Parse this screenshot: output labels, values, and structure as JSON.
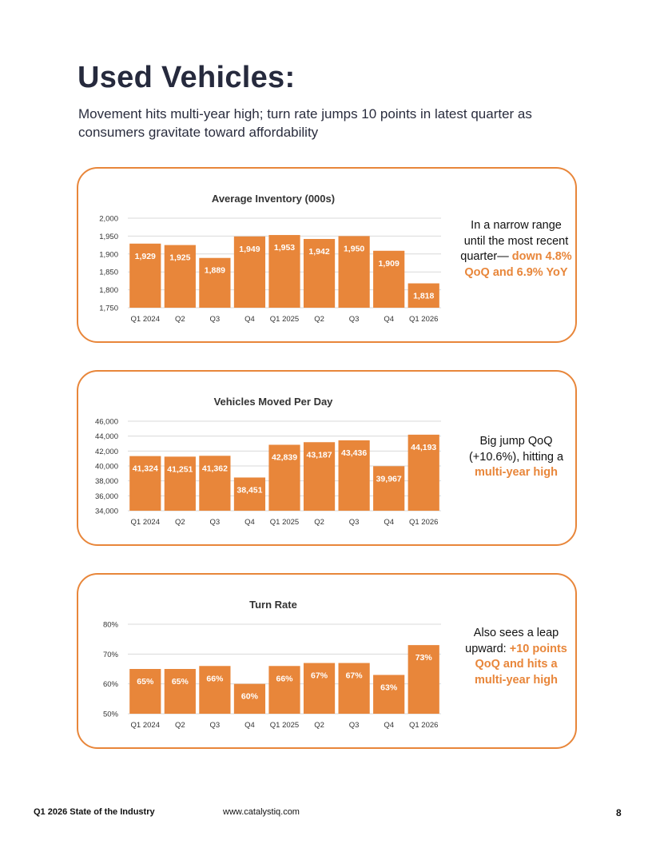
{
  "page": {
    "title": "Used Vehicles:",
    "subtitle": "Movement hits multi-year high; turn rate jumps 10 points in latest quarter as consumers gravitate toward affordability",
    "footer_left": "Q1 2026 State of the Industry",
    "footer_mid": "www.catalystiq.com",
    "page_number": "8",
    "accent_color": "#e8863a"
  },
  "notes": [
    {
      "plain": "In a narrow range until the most recent quarter—",
      "bold": "down 4.8% QoQ and 6.9% YoY"
    },
    {
      "plain": "Big jump QoQ (+10.6%), hitting a",
      "bold": "multi-year high"
    },
    {
      "plain": "Also sees a leap upward:",
      "bold": "+10 points QoQ and hits a multi-year high"
    }
  ],
  "chart_data": [
    {
      "type": "bar",
      "title": "Average Inventory (000s)",
      "categories": [
        "Q1 2024",
        "Q2",
        "Q3",
        "Q4",
        "Q1 2025",
        "Q2",
        "Q3",
        "Q4",
        "Q1 2026"
      ],
      "values": [
        1929,
        1925,
        1889,
        1949,
        1953,
        1942,
        1950,
        1909,
        1818
      ],
      "data_labels": [
        "1,929",
        "1,925",
        "1,889",
        "1,949",
        "1,953",
        "1,942",
        "1,950",
        "1,909",
        "1,818"
      ],
      "ylim": [
        1750,
        2000
      ],
      "yticks": [
        1750,
        1800,
        1850,
        1900,
        1950,
        2000
      ],
      "ytick_labels": [
        "1,750",
        "1,800",
        "1,850",
        "1,900",
        "1,950",
        "2,000"
      ],
      "grid": true,
      "color": "#e8863a"
    },
    {
      "type": "bar",
      "title": "Vehicles Moved Per Day",
      "categories": [
        "Q1 2024",
        "Q2",
        "Q3",
        "Q4",
        "Q1 2025",
        "Q2",
        "Q3",
        "Q4",
        "Q1 2026"
      ],
      "values": [
        41324,
        41251,
        41362,
        38451,
        42839,
        43187,
        43436,
        39967,
        44193
      ],
      "data_labels": [
        "41,324",
        "41,251",
        "41,362",
        "38,451",
        "42,839",
        "43,187",
        "43,436",
        "39,967",
        "44,193"
      ],
      "ylim": [
        34000,
        46000
      ],
      "yticks": [
        34000,
        36000,
        38000,
        40000,
        42000,
        44000,
        46000
      ],
      "ytick_labels": [
        "34,000",
        "36,000",
        "38,000",
        "40,000",
        "42,000",
        "44,000",
        "46,000"
      ],
      "grid": true,
      "color": "#e8863a"
    },
    {
      "type": "bar",
      "title": "Turn Rate",
      "categories": [
        "Q1 2024",
        "Q2",
        "Q3",
        "Q4",
        "Q1 2025",
        "Q2",
        "Q3",
        "Q4",
        "Q1 2026"
      ],
      "values": [
        65,
        65,
        66,
        60,
        66,
        67,
        67,
        63,
        73
      ],
      "data_labels": [
        "65%",
        "65%",
        "66%",
        "60%",
        "66%",
        "67%",
        "67%",
        "63%",
        "73%"
      ],
      "ylim": [
        50,
        80
      ],
      "yticks": [
        50,
        60,
        70,
        80
      ],
      "ytick_labels": [
        "50%",
        "60%",
        "70%",
        "80%"
      ],
      "grid": true,
      "color": "#e8863a"
    }
  ]
}
